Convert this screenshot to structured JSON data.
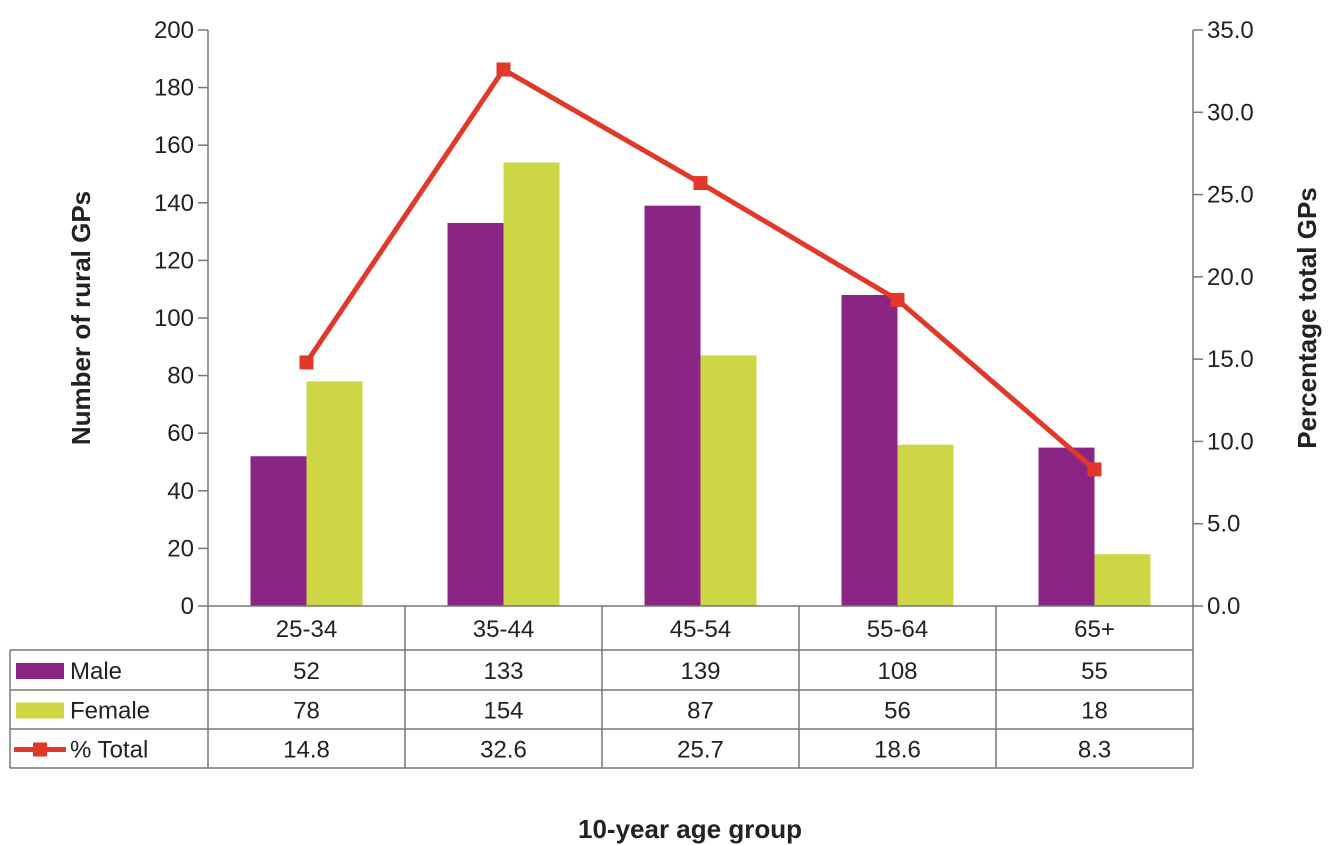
{
  "chart_data": {
    "type": "bar",
    "categories": [
      "25-34",
      "35-44",
      "45-54",
      "55-64",
      "65+"
    ],
    "series": [
      {
        "name": "Male",
        "type": "bar",
        "axis": "left",
        "color": "#8B2585",
        "values": [
          52,
          133,
          139,
          108,
          55
        ]
      },
      {
        "name": "Female",
        "type": "bar",
        "axis": "left",
        "color": "#CDD745",
        "values": [
          78,
          154,
          87,
          56,
          18
        ]
      },
      {
        "name": "% Total",
        "type": "line",
        "axis": "right",
        "color": "#E2382A",
        "values": [
          14.8,
          32.6,
          25.7,
          18.6,
          8.3
        ]
      }
    ],
    "table_values": [
      [
        "52",
        "133",
        "139",
        "108",
        "55"
      ],
      [
        "78",
        "154",
        "87",
        "56",
        "18"
      ],
      [
        "14.8",
        "32.6",
        "25.7",
        "18.6",
        "8.3"
      ]
    ],
    "xlabel": "10-year age group",
    "ylabel": "Number of rural GPs",
    "y2label": "Percentage total GPs",
    "ylim": [
      0,
      200
    ],
    "y2lim": [
      0,
      35
    ],
    "yticks": [
      "0",
      "20",
      "40",
      "60",
      "80",
      "100",
      "120",
      "140",
      "160",
      "180",
      "200"
    ],
    "y2ticks": [
      "0.0",
      "5.0",
      "10.0",
      "15.0",
      "20.0",
      "25.0",
      "30.0",
      "35.0"
    ],
    "legend": "data table"
  }
}
